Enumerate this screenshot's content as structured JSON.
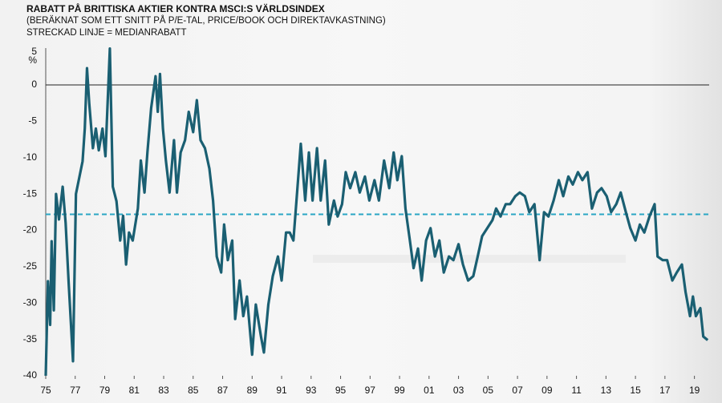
{
  "chart_data": {
    "type": "line",
    "title": "RABATT PÅ BRITTISKA AKTIER KONTRA MSCI:S VÄRLDSINDEX",
    "subtitle": "(BERÄKNAT SOM ETT SNITT PÅ P/E-TAL, PRICE/BOOK OCH DIREKTAVKASTNING)",
    "note": "STRECKAD LINJE = MEDIANRABATT",
    "y_unit": "%",
    "median": -17.8,
    "median_color": "#2aa6c4",
    "xlim": [
      1975,
      2020
    ],
    "ylim": [
      -40,
      5
    ],
    "yticks": [
      5,
      0,
      -5,
      -10,
      -15,
      -20,
      -25,
      -30,
      -35,
      -40
    ],
    "xticks": [
      {
        "value": 1975,
        "label": "75"
      },
      {
        "value": 1977,
        "label": "77"
      },
      {
        "value": 1979,
        "label": "79"
      },
      {
        "value": 1981,
        "label": "81"
      },
      {
        "value": 1983,
        "label": "83"
      },
      {
        "value": 1985,
        "label": "85"
      },
      {
        "value": 1987,
        "label": "87"
      },
      {
        "value": 1989,
        "label": "89"
      },
      {
        "value": 1991,
        "label": "91"
      },
      {
        "value": 1993,
        "label": "93"
      },
      {
        "value": 1995,
        "label": "95"
      },
      {
        "value": 1997,
        "label": "97"
      },
      {
        "value": 1999,
        "label": "99"
      },
      {
        "value": 2001,
        "label": "01"
      },
      {
        "value": 2003,
        "label": "03"
      },
      {
        "value": 2005,
        "label": "05"
      },
      {
        "value": 2007,
        "label": "07"
      },
      {
        "value": 2009,
        "label": "09"
      },
      {
        "value": 2011,
        "label": "11"
      },
      {
        "value": 2013,
        "label": "13"
      },
      {
        "value": 2015,
        "label": "15"
      },
      {
        "value": 2017,
        "label": "17"
      },
      {
        "value": 2019,
        "label": "19"
      }
    ],
    "x": [
      1975.0,
      1975.15,
      1975.3,
      1975.4,
      1975.55,
      1975.7,
      1975.9,
      1976.15,
      1976.35,
      1976.55,
      1976.85,
      1977.05,
      1977.3,
      1977.5,
      1977.65,
      1977.8,
      1977.95,
      1978.2,
      1978.4,
      1978.6,
      1978.85,
      1979.05,
      1979.35,
      1979.55,
      1979.8,
      1980.05,
      1980.25,
      1980.45,
      1980.65,
      1980.9,
      1981.25,
      1981.45,
      1981.7,
      1981.9,
      1982.15,
      1982.45,
      1982.6,
      1982.75,
      1982.95,
      1983.15,
      1983.4,
      1983.7,
      1983.9,
      1984.15,
      1984.45,
      1984.7,
      1985.0,
      1985.25,
      1985.5,
      1985.8,
      1986.1,
      1986.35,
      1986.6,
      1986.9,
      1987.1,
      1987.35,
      1987.65,
      1987.85,
      1988.15,
      1988.4,
      1988.65,
      1989.0,
      1989.25,
      1989.6,
      1989.8,
      1990.1,
      1990.4,
      1990.75,
      1991.0,
      1991.3,
      1991.55,
      1991.8,
      1992.05,
      1992.3,
      1992.6,
      1992.85,
      1993.1,
      1993.4,
      1993.65,
      1993.95,
      1994.2,
      1994.55,
      1994.8,
      1995.1,
      1995.35,
      1995.65,
      1996.0,
      1996.3,
      1996.65,
      1996.95,
      1997.3,
      1997.6,
      1997.95,
      1998.3,
      1998.6,
      1998.85,
      1999.15,
      1999.4,
      1999.7,
      1999.95,
      2000.25,
      2000.5,
      2000.8,
      2001.1,
      2001.4,
      2001.7,
      2002.0,
      2002.35,
      2002.65,
      2003.0,
      2003.3,
      2003.65,
      2004.0,
      2004.3,
      2004.6,
      2004.95,
      2005.3,
      2005.55,
      2005.85,
      2006.2,
      2006.5,
      2006.85,
      2007.15,
      2007.5,
      2007.8,
      2008.15,
      2008.5,
      2008.8,
      2009.1,
      2009.45,
      2009.8,
      2010.1,
      2010.45,
      2010.75,
      2011.1,
      2011.4,
      2011.75,
      2012.05,
      2012.4,
      2012.7,
      2013.05,
      2013.35,
      2013.7,
      2014.0,
      2014.35,
      2014.65,
      2015.0,
      2015.3,
      2015.6,
      2015.95,
      2016.3,
      2016.5,
      2016.85,
      2017.15,
      2017.5,
      2017.8,
      2018.15,
      2018.4,
      2018.7,
      2018.9,
      2019.1,
      2019.4,
      2019.6,
      2019.9
    ],
    "series": [
      {
        "color": "#1a5f72",
        "values": [
          -40,
          -27,
          -33,
          -21.5,
          -31,
          -15,
          -18.5,
          -14,
          -19,
          -27,
          -38,
          -15,
          -12.5,
          -10.5,
          -6,
          2.3,
          -2.5,
          -8.7,
          -6,
          -9,
          -6,
          -9.8,
          5,
          -14,
          -16,
          -21.4,
          -18,
          -24.7,
          -20.3,
          -21.4,
          -17,
          -10.4,
          -14.8,
          -9.2,
          -3.2,
          1.2,
          -3.7,
          1.5,
          -6,
          -10.4,
          -14.8,
          -7.6,
          -14.8,
          -9.3,
          -7.6,
          -3.7,
          -6.5,
          -2.1,
          -7.6,
          -8.7,
          -11.5,
          -15.9,
          -23.6,
          -25.8,
          -19.2,
          -24.1,
          -21.4,
          -32.2,
          -26.9,
          -31.8,
          -29.1,
          -37.1,
          -30.2,
          -34.6,
          -36.8,
          -30.2,
          -26.3,
          -23.6,
          -26.9,
          -20.3,
          -20.3,
          -21.4,
          -14.8,
          -8.1,
          -15.9,
          -9.3,
          -15.9,
          -8.7,
          -15.9,
          -10.4,
          -19.2,
          -15.9,
          -18.1,
          -16.4,
          -12,
          -14.2,
          -12,
          -14.8,
          -12.6,
          -15.9,
          -13.1,
          -15.9,
          -10.4,
          -14.2,
          -9.3,
          -13.1,
          -9.8,
          -17,
          -21.4,
          -25.2,
          -22.5,
          -26.9,
          -21.4,
          -19.7,
          -23.6,
          -21.4,
          -25.8,
          -23.6,
          -24.1,
          -21.9,
          -24.7,
          -26.9,
          -26.3,
          -23.6,
          -20.8,
          -19.7,
          -18.6,
          -17,
          -18.1,
          -16.4,
          -16.4,
          -15.3,
          -14.8,
          -15.3,
          -17.5,
          -16.4,
          -24.1,
          -17.5,
          -18.1,
          -15.9,
          -13.1,
          -15.3,
          -12.6,
          -13.7,
          -12,
          -13.1,
          -12,
          -17,
          -14.8,
          -14.2,
          -15.3,
          -17.5,
          -16.4,
          -14.8,
          -17.5,
          -19.7,
          -21.4,
          -19.2,
          -20.3,
          -18.1,
          -16.4,
          -23.6,
          -24.1,
          -24.1,
          -26.9,
          -25.8,
          -24.7,
          -28.5,
          -31.8,
          -29.1,
          -31.8,
          -30.7,
          -34.6,
          -35.1
        ]
      }
    ]
  }
}
